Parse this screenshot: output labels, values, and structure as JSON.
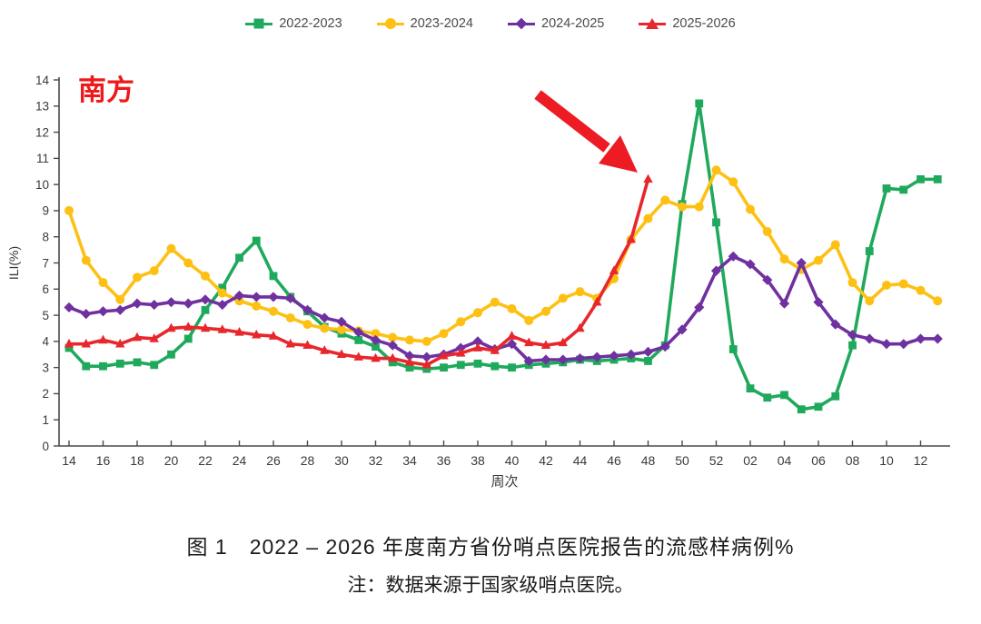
{
  "page": {
    "background": "#ffffff"
  },
  "legend": {
    "items": [
      {
        "label": "2022-2023",
        "marker": "square",
        "color": "#1fa95c"
      },
      {
        "label": "2023-2024",
        "marker": "circle",
        "color": "#fdc013"
      },
      {
        "label": "2024-2025",
        "marker": "diamond",
        "color": "#7031a0"
      },
      {
        "label": "2025-2026",
        "marker": "triangle",
        "color": "#e8272d"
      }
    ]
  },
  "annotations": {
    "region_label": {
      "text": "南方",
      "color": "#f01818"
    },
    "arrow": {
      "color": "#ed1c24",
      "points_at": "2025-2026 week 48 value 10.2"
    }
  },
  "chart_data": {
    "type": "line",
    "title": "图 1　2022 – 2026 年度南方省份哨点医院报告的流感样病例%",
    "note": "注：数据来源于国家级哨点医院。",
    "xlabel": "周次",
    "ylabel": "ILI(%)",
    "ylim": [
      0,
      14
    ],
    "y_ticks": [
      0,
      1,
      2,
      3,
      4,
      5,
      6,
      7,
      8,
      9,
      10,
      11,
      12,
      13,
      14
    ],
    "grid": false,
    "legend_position": "top",
    "x_categories": [
      "14",
      "15",
      "16",
      "17",
      "18",
      "19",
      "20",
      "21",
      "22",
      "23",
      "24",
      "25",
      "26",
      "27",
      "28",
      "29",
      "30",
      "31",
      "32",
      "33",
      "34",
      "35",
      "36",
      "37",
      "38",
      "39",
      "40",
      "41",
      "42",
      "43",
      "44",
      "45",
      "46",
      "47",
      "48",
      "49",
      "50",
      "51",
      "52",
      "01",
      "02",
      "03",
      "04",
      "05",
      "06",
      "07",
      "08",
      "09",
      "10",
      "11",
      "12",
      "13"
    ],
    "x_tick_labels": [
      "14",
      "16",
      "18",
      "20",
      "22",
      "24",
      "26",
      "28",
      "30",
      "32",
      "34",
      "36",
      "38",
      "40",
      "42",
      "44",
      "46",
      "48",
      "50",
      "52",
      "02",
      "04",
      "06",
      "08",
      "10",
      "12"
    ],
    "series": [
      {
        "name": "2022-2023",
        "color": "#1fa95c",
        "marker": "square",
        "values": [
          3.75,
          3.05,
          3.05,
          3.15,
          3.2,
          3.1,
          3.5,
          4.1,
          5.2,
          6.05,
          7.2,
          7.85,
          6.5,
          5.7,
          5.15,
          4.55,
          4.3,
          4.05,
          3.8,
          3.2,
          3.0,
          2.95,
          3.0,
          3.1,
          3.15,
          3.05,
          3.0,
          3.1,
          3.15,
          3.2,
          3.3,
          3.25,
          3.3,
          3.35,
          3.25,
          3.85,
          9.25,
          13.1,
          8.55,
          3.7,
          2.2,
          1.85,
          1.95,
          1.4,
          1.5,
          1.9,
          3.85,
          7.45,
          9.85,
          9.8,
          10.2,
          10.2
        ]
      },
      {
        "name": "2023-2024",
        "color": "#fdc013",
        "marker": "circle",
        "values": [
          9.0,
          7.1,
          6.25,
          5.6,
          6.45,
          6.7,
          7.55,
          7.0,
          6.5,
          5.85,
          5.55,
          5.35,
          5.15,
          4.9,
          4.65,
          4.5,
          4.45,
          4.4,
          4.3,
          4.15,
          4.05,
          4.0,
          4.3,
          4.75,
          5.1,
          5.5,
          5.25,
          4.8,
          5.15,
          5.65,
          5.9,
          5.65,
          6.4,
          7.9,
          8.7,
          9.4,
          9.15,
          9.15,
          10.55,
          10.1,
          9.05,
          8.2,
          7.15,
          6.75,
          7.1,
          7.7,
          6.25,
          5.55,
          6.15,
          6.2,
          5.95,
          5.55
        ]
      },
      {
        "name": "2024-2025",
        "color": "#7031a0",
        "marker": "diamond",
        "values": [
          5.3,
          5.05,
          5.15,
          5.2,
          5.45,
          5.4,
          5.5,
          5.45,
          5.6,
          5.4,
          5.75,
          5.7,
          5.7,
          5.65,
          5.2,
          4.9,
          4.75,
          4.35,
          4.05,
          3.85,
          3.45,
          3.4,
          3.5,
          3.75,
          4.0,
          3.7,
          3.9,
          3.25,
          3.3,
          3.3,
          3.35,
          3.4,
          3.45,
          3.5,
          3.6,
          3.8,
          4.45,
          5.3,
          6.7,
          7.25,
          6.95,
          6.35,
          5.45,
          7.0,
          5.5,
          4.65,
          4.25,
          4.1,
          3.9,
          3.9,
          4.1,
          4.1
        ]
      },
      {
        "name": "2025-2026",
        "color": "#e8272d",
        "marker": "triangle",
        "values": [
          3.9,
          3.9,
          4.05,
          3.9,
          4.15,
          4.1,
          4.5,
          4.55,
          4.5,
          4.45,
          4.35,
          4.25,
          4.2,
          3.9,
          3.85,
          3.65,
          3.5,
          3.4,
          3.35,
          3.35,
          3.2,
          3.1,
          3.45,
          3.55,
          3.75,
          3.65,
          4.2,
          3.95,
          3.85,
          3.95,
          4.5,
          5.5,
          6.7,
          7.9,
          10.2
        ]
      }
    ]
  },
  "caption": {
    "line1": "图 1　2022 – 2026 年度南方省份哨点医院报告的流感样病例%",
    "line2": "注：数据来源于国家级哨点医院。"
  }
}
